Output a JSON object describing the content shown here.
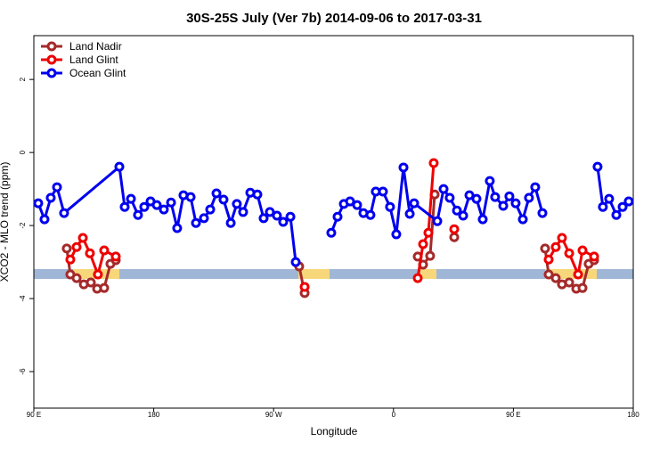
{
  "chart_data": {
    "type": "line",
    "title": "30S-25S July (Ver 7b)   2014-09-06 to 2017-03-31",
    "x_label": "Longitude",
    "y_label": "XCO2 - MLO trend (ppm)",
    "xlim": [
      90,
      540
    ],
    "ylim": [
      -7,
      3.2
    ],
    "xticks": [
      {
        "value": 90,
        "label": "90 E"
      },
      {
        "value": 180,
        "label": "180"
      },
      {
        "value": 270,
        "label": "90 W"
      },
      {
        "value": 360,
        "label": "0"
      },
      {
        "value": 450,
        "label": "90 E"
      },
      {
        "value": 540,
        "label": "180"
      }
    ],
    "yticks": [
      2,
      0,
      -2,
      -4,
      -6
    ],
    "legend": "top-left",
    "series": [
      {
        "name": "Land Nadir",
        "color": "#a52a2a",
        "x": [
          114.7,
          117.4,
          122.1,
          127.5,
          132.8,
          137.5,
          142.8,
          147.5,
          151.5,
          null,
          289.2,
          293.3,
          null,
          378.2,
          382.2,
          387.5,
          390.9,
          null,
          405.6,
          null,
          473.8,
          476.5,
          481.8,
          486.5,
          491.9,
          497.2,
          501.9,
          506.5,
          510.6
        ],
        "values": [
          -2.63,
          -3.34,
          -3.44,
          -3.61,
          -3.56,
          -3.73,
          -3.71,
          -3.05,
          -2.95,
          null,
          -3.12,
          -3.85,
          null,
          -2.85,
          -3.07,
          -2.83,
          -1.15,
          null,
          -2.32,
          null,
          -2.63,
          -3.34,
          -3.44,
          -3.61,
          -3.56,
          -3.73,
          -3.71,
          -3.05,
          -2.95
        ]
      },
      {
        "name": "Land Glint",
        "color": "#ee0000",
        "x": [
          117.4,
          122.1,
          126.8,
          132.1,
          138.1,
          142.8,
          151.5,
          null,
          293.3,
          null,
          378.2,
          382.2,
          386.2,
          390.2,
          null,
          405.6,
          null,
          476.5,
          481.8,
          486.5,
          491.9,
          498.6,
          501.9,
          510.6
        ],
        "values": [
          -2.93,
          -2.59,
          -2.34,
          -2.76,
          -3.34,
          -2.68,
          -2.85,
          null,
          -3.68,
          null,
          -3.44,
          -2.51,
          -2.2,
          -0.29,
          null,
          -2.1,
          null,
          -2.93,
          -2.59,
          -2.34,
          -2.76,
          -3.34,
          -2.68,
          -2.85
        ]
      },
      {
        "name": "Ocean Glint",
        "color": "#0000ee",
        "x": [
          93.3,
          98.0,
          102.7,
          107.4,
          112.7,
          154.2,
          158.2,
          162.9,
          168.2,
          172.9,
          177.6,
          182.3,
          187.6,
          193.0,
          197.6,
          202.3,
          207.7,
          211.7,
          217.7,
          222.4,
          227.1,
          232.4,
          237.8,
          242.4,
          247.1,
          252.5,
          257.8,
          262.5,
          267.2,
          272.5,
          277.2,
          282.6,
          286.6,
          null,
          313.3,
          318.0,
          322.7,
          327.4,
          332.7,
          337.4,
          342.7,
          346.7,
          352.1,
          357.4,
          362.1,
          367.5,
          372.2,
          375.5,
          392.9,
          397.6,
          402.2,
          407.6,
          412.3,
          417.0,
          422.3,
          427.0,
          432.3,
          436.3,
          442.4,
          447.0,
          451.7,
          457.1,
          461.7,
          466.4,
          471.8,
          null,
          513.2,
          517.2,
          521.9,
          527.3,
          532.0,
          536.6
        ],
        "values": [
          -1.39,
          -1.83,
          -1.24,
          -0.95,
          -1.66,
          -0.39,
          -1.49,
          -1.27,
          -1.71,
          -1.49,
          -1.34,
          -1.44,
          -1.56,
          -1.37,
          -2.07,
          -1.17,
          -1.22,
          -1.93,
          -1.8,
          -1.56,
          -1.12,
          -1.29,
          -1.93,
          -1.41,
          -1.63,
          -1.1,
          -1.15,
          -1.8,
          -1.63,
          -1.73,
          -1.9,
          -1.76,
          -3.0,
          null,
          -2.2,
          -1.76,
          -1.41,
          -1.34,
          -1.44,
          -1.66,
          -1.71,
          -1.07,
          -1.07,
          -1.49,
          -2.24,
          -0.41,
          -1.68,
          -1.39,
          -1.88,
          -1.0,
          -1.24,
          -1.59,
          -1.73,
          -1.17,
          -1.27,
          -1.83,
          -0.78,
          -1.22,
          -1.46,
          -1.2,
          -1.39,
          -1.83,
          -1.24,
          -0.95,
          -1.66,
          null,
          -0.39,
          -1.49,
          -1.27,
          -1.71,
          -1.49,
          -1.34
        ]
      }
    ]
  }
}
